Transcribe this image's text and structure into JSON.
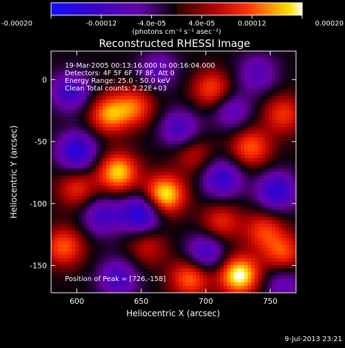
{
  "chart_data": {
    "type": "heatmap",
    "title": "Reconstructed RHESSI Image",
    "xlabel": "Heliocentric X (arcsec)",
    "ylabel": "Heliocentric Y (arcsec)",
    "xlim": [
      580,
      770
    ],
    "ylim": [
      -172,
      23
    ],
    "x_ticks": [
      600,
      650,
      700,
      750
    ],
    "y_ticks": [
      0,
      -50,
      -100,
      -150
    ],
    "colorbar": {
      "range": [
        -0.0002,
        0.0002
      ],
      "tick_values": [
        -0.0002,
        -0.00012,
        -4e-05,
        4e-05,
        0.00012,
        0.0002
      ],
      "tick_labels": [
        "-0.00020",
        "-0.00012",
        "-4.0e-05",
        "4.0e-05",
        "0.00012",
        "0.00020"
      ],
      "unit_label": "(photons cm⁻² s⁻¹ asec⁻²)"
    },
    "annotations": [
      "19-Mar-2005 00:13:16.000 to 00:16:04.000",
      "Detectors: 4F 5F 6F 7F 8F, Att 0",
      "Energy Range: 25.0 - 50.0 keV",
      "Clean    Total counts: 2.22E+03"
    ],
    "peak_label": "Position of Peak = [726,-158]",
    "peak": [
      726,
      -158
    ],
    "blobs": [
      {
        "x": 726,
        "y": -158,
        "v": 1.0
      },
      {
        "x": 668,
        "y": -93,
        "v": 0.95
      },
      {
        "x": 632,
        "y": -75,
        "v": 0.85
      },
      {
        "x": 625,
        "y": -28,
        "v": 0.7
      },
      {
        "x": 645,
        "y": -22,
        "v": 0.55
      },
      {
        "x": 705,
        "y": -8,
        "v": 0.55
      },
      {
        "x": 735,
        "y": -55,
        "v": 0.6
      },
      {
        "x": 760,
        "y": -28,
        "v": 0.5
      },
      {
        "x": 590,
        "y": -135,
        "v": 0.6
      },
      {
        "x": 600,
        "y": -88,
        "v": 0.45
      },
      {
        "x": 688,
        "y": -160,
        "v": 0.65
      },
      {
        "x": 745,
        "y": -122,
        "v": 0.5
      },
      {
        "x": 760,
        "y": -140,
        "v": 0.55
      },
      {
        "x": 712,
        "y": -115,
        "v": 0.45
      },
      {
        "x": 655,
        "y": -135,
        "v": 0.35
      },
      {
        "x": 690,
        "y": -60,
        "v": 0.35
      },
      {
        "x": 650,
        "y": -108,
        "v": -0.8
      },
      {
        "x": 595,
        "y": -10,
        "v": -0.6
      },
      {
        "x": 600,
        "y": -58,
        "v": -0.75
      },
      {
        "x": 620,
        "y": -110,
        "v": -0.55
      },
      {
        "x": 680,
        "y": -40,
        "v": -0.55
      },
      {
        "x": 713,
        "y": -80,
        "v": -0.65
      },
      {
        "x": 755,
        "y": -90,
        "v": -0.7
      },
      {
        "x": 720,
        "y": -25,
        "v": -0.45
      },
      {
        "x": 740,
        "y": 5,
        "v": -0.45
      },
      {
        "x": 632,
        "y": -160,
        "v": -0.55
      },
      {
        "x": 700,
        "y": -140,
        "v": -0.6
      },
      {
        "x": 663,
        "y": 8,
        "v": -0.4
      },
      {
        "x": 760,
        "y": -165,
        "v": -0.4
      }
    ]
  },
  "footer": {
    "timestamp": "9-Jul-2013 23:21"
  }
}
